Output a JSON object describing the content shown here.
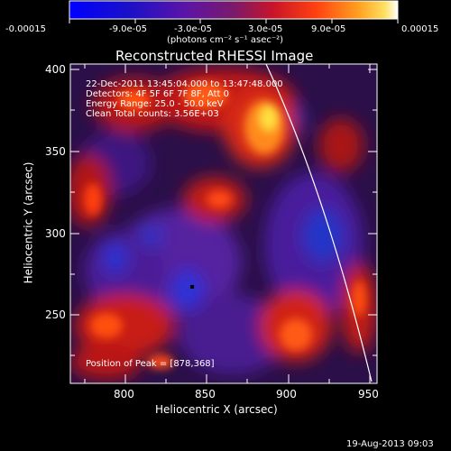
{
  "colorbar": {
    "tick_labels": [
      "-0.00015",
      "-9.0e-05",
      "-3.0e-05",
      "3.0e-05",
      "9.0e-05",
      "0.00015"
    ],
    "unit_label": "(photons cm⁻² s⁻¹ asec⁻²)"
  },
  "plot": {
    "title": "Reconstructed RHESSI Image",
    "xlabel": "Heliocentric X (arcsec)",
    "ylabel": "Heliocentric Y (arcsec)",
    "x_ticks": [
      "800",
      "850",
      "900",
      "950"
    ],
    "y_ticks": [
      "250",
      "300",
      "350",
      "400"
    ],
    "info_lines": [
      "22-Dec-2011 13:45:04.000 to 13:47:48.000",
      "Detectors: 4F 5F 6F 7F 8F, Att 0",
      "Energy Range: 25.0 - 50.0 keV",
      "Clean     Total counts: 3.56E+03"
    ],
    "peak_text": "Position of Peak = [878,368]"
  },
  "footer": {
    "date": "19-Aug-2013 09:03"
  }
}
